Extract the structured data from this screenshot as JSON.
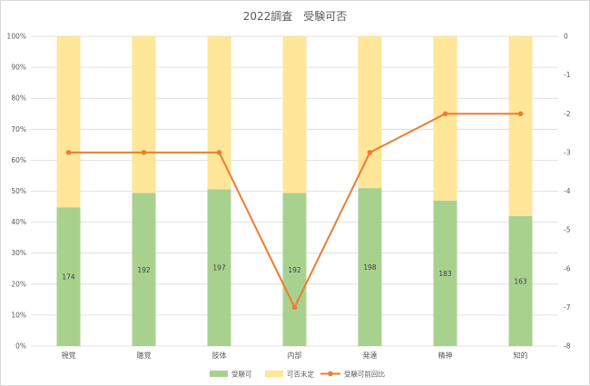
{
  "chart_data": {
    "type": "bar",
    "title": "2022調査　受験可否",
    "categories": [
      "視覚",
      "聴覚",
      "肢体",
      "内部",
      "発達",
      "精神",
      "知的"
    ],
    "series": [
      {
        "name": "受験可",
        "kind": "stacked-bar",
        "axis": "left",
        "color": "#a9d18e",
        "values_percent": [
          44.8,
          49.4,
          50.6,
          49.4,
          51.0,
          47.0,
          42.0
        ],
        "data_labels": [
          "174",
          "192",
          "197",
          "192",
          "198",
          "183",
          "163"
        ]
      },
      {
        "name": "可否未定",
        "kind": "stacked-bar",
        "axis": "left",
        "color": "#ffe699",
        "values_percent": [
          55.2,
          50.6,
          49.4,
          50.6,
          49.0,
          53.0,
          58.0
        ]
      },
      {
        "name": "受験可前回比",
        "kind": "line",
        "axis": "right",
        "color": "#ed7d31",
        "values": [
          -3,
          -3,
          -3,
          -7,
          -3,
          -2,
          -2
        ]
      }
    ],
    "y_left": {
      "range": [
        0,
        100
      ],
      "tick_labels": [
        "0%",
        "10%",
        "20%",
        "30%",
        "40%",
        "50%",
        "60%",
        "70%",
        "80%",
        "90%",
        "100%"
      ]
    },
    "y_right": {
      "range": [
        -8,
        0
      ],
      "tick_labels": [
        "-8",
        "-7",
        "-6",
        "-5",
        "-4",
        "-3",
        "-2",
        "-1",
        "0"
      ]
    },
    "grid": true,
    "legend_position": "bottom"
  }
}
